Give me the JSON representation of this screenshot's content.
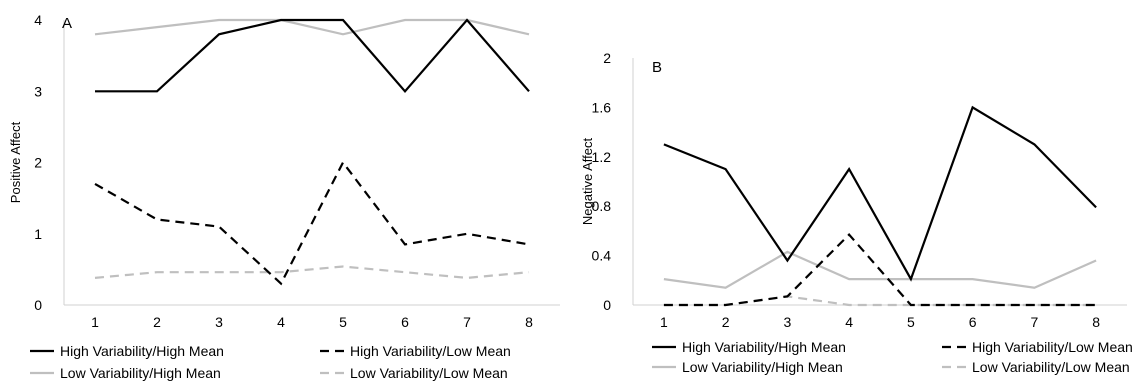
{
  "chart_data": [
    {
      "type": "line",
      "panel_label": "A",
      "ylabel": "Positive Affect",
      "xlabel": "",
      "x": [
        "1",
        "2",
        "3",
        "4",
        "5",
        "6",
        "7",
        "8"
      ],
      "ylim": [
        0,
        4
      ],
      "yticks": [
        "0",
        "1",
        "2",
        "3",
        "4"
      ],
      "grid": false,
      "legend_position": "bottom",
      "series": [
        {
          "name": "High Variability/High Mean",
          "color": "#000000",
          "dash": "solid",
          "values": [
            3,
            3,
            3.8,
            4,
            4,
            3,
            4,
            3
          ]
        },
        {
          "name": "High Variability/Low Mean",
          "color": "#000000",
          "dash": "dashed",
          "values": [
            1.7,
            1.2,
            1.1,
            0.3,
            2.0,
            0.85,
            1.0,
            0.85
          ]
        },
        {
          "name": "Low Variability/High Mean",
          "color": "#bfbfbf",
          "dash": "solid",
          "values": [
            3.8,
            3.9,
            4,
            4,
            3.8,
            4,
            4,
            3.8
          ]
        },
        {
          "name": "Low Variability/Low Mean",
          "color": "#bfbfbf",
          "dash": "dashed",
          "values": [
            0.38,
            0.46,
            0.46,
            0.46,
            0.54,
            0.46,
            0.38,
            0.46
          ]
        }
      ]
    },
    {
      "type": "line",
      "panel_label": "B",
      "ylabel": "Negative Affect",
      "xlabel": "",
      "x": [
        "1",
        "2",
        "3",
        "4",
        "5",
        "6",
        "7",
        "8"
      ],
      "ylim": [
        0,
        2
      ],
      "yticks": [
        "0",
        "0.4",
        "0.8",
        "1.2",
        "1.6",
        "2"
      ],
      "grid": false,
      "legend_position": "bottom",
      "series": [
        {
          "name": "High Variability/High Mean",
          "color": "#000000",
          "dash": "solid",
          "values": [
            1.3,
            1.1,
            0.36,
            1.1,
            0.21,
            1.6,
            1.3,
            0.79
          ]
        },
        {
          "name": "High Variability/Low Mean",
          "color": "#000000",
          "dash": "dashed",
          "values": [
            0,
            0,
            0.07,
            0.57,
            0,
            0,
            0,
            0
          ]
        },
        {
          "name": "Low Variability/High Mean",
          "color": "#bfbfbf",
          "dash": "solid",
          "values": [
            0.21,
            0.14,
            0.43,
            0.21,
            0.21,
            0.21,
            0.14,
            0.36
          ]
        },
        {
          "name": "Low Variability/Low Mean",
          "color": "#bfbfbf",
          "dash": "dashed",
          "values": [
            0,
            0,
            0.07,
            0,
            0,
            0,
            0,
            0
          ]
        }
      ]
    }
  ]
}
